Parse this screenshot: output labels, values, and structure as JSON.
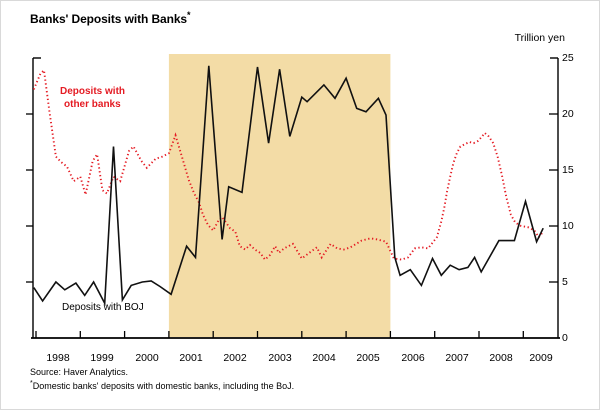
{
  "title": {
    "text": "Banks' Deposits with Banks",
    "marker": "*"
  },
  "unit_label": "Trillion yen",
  "y_axis": {
    "ticks": [
      "25",
      "20",
      "15",
      "10",
      "5",
      "0"
    ],
    "values": [
      25,
      20,
      15,
      10,
      5,
      0
    ]
  },
  "x_axis": {
    "labels": [
      "1998",
      "1999",
      "2000",
      "2001",
      "2002",
      "2003",
      "2004",
      "2005",
      "2006",
      "2007",
      "2008",
      "2009"
    ]
  },
  "annotations": {
    "other_banks_line1": "Deposits with",
    "other_banks_line2": "other banks",
    "boj_label": "Deposits with BOJ"
  },
  "footer": {
    "source": "Source: Haver Analytics.",
    "footnote_marker": "*",
    "footnote": "Domestic banks' deposits with domestic banks, including the BoJ."
  },
  "colors": {
    "red_line": "#e41b23",
    "black_line": "#111111",
    "shading": "#f3dca6",
    "axis": "#000000"
  },
  "chart_data": {
    "type": "line",
    "title": "Banks' Deposits with Banks*",
    "ylabel": "Trillion yen",
    "ylim": [
      0,
      25
    ],
    "xlim": [
      1997.93,
      2009.78
    ],
    "grid": false,
    "x_tick_years": [
      1998,
      1999,
      2000,
      2001,
      2002,
      2003,
      2004,
      2005,
      2006,
      2007,
      2008,
      2009
    ],
    "shaded_region": {
      "start_year": 2001,
      "end_year": 2006,
      "meaning": "shaded band"
    },
    "series": [
      {
        "name": "Deposits with other banks",
        "style": "dotted",
        "color": "#e41b23",
        "points": [
          [
            1997.95,
            22.2
          ],
          [
            1998.1,
            23.6
          ],
          [
            1998.18,
            23.9
          ],
          [
            1998.3,
            20.3
          ],
          [
            1998.45,
            16.2
          ],
          [
            1998.57,
            15.7
          ],
          [
            1998.7,
            15.3
          ],
          [
            1998.85,
            14.0
          ],
          [
            1999.0,
            14.4
          ],
          [
            1999.12,
            12.8
          ],
          [
            1999.28,
            15.8
          ],
          [
            1999.38,
            16.4
          ],
          [
            1999.5,
            13.2
          ],
          [
            1999.6,
            12.9
          ],
          [
            1999.75,
            14.4
          ],
          [
            1999.9,
            14.0
          ],
          [
            2000.1,
            16.7
          ],
          [
            2000.2,
            17.1
          ],
          [
            2000.38,
            15.8
          ],
          [
            2000.5,
            15.2
          ],
          [
            2000.7,
            16.0
          ],
          [
            2000.85,
            16.2
          ],
          [
            2001.0,
            16.5
          ],
          [
            2001.15,
            18.1
          ],
          [
            2001.3,
            16.1
          ],
          [
            2001.45,
            14.1
          ],
          [
            2001.57,
            12.9
          ],
          [
            2001.68,
            12.1
          ],
          [
            2001.77,
            11.0
          ],
          [
            2001.88,
            10.1
          ],
          [
            2002.0,
            9.6
          ],
          [
            2002.12,
            10.5
          ],
          [
            2002.2,
            10.8
          ],
          [
            2002.38,
            9.8
          ],
          [
            2002.5,
            9.5
          ],
          [
            2002.6,
            8.2
          ],
          [
            2002.72,
            7.9
          ],
          [
            2002.83,
            8.3
          ],
          [
            2002.94,
            7.9
          ],
          [
            2003.06,
            7.6
          ],
          [
            2003.17,
            7.0
          ],
          [
            2003.28,
            7.4
          ],
          [
            2003.4,
            8.2
          ],
          [
            2003.48,
            7.6
          ],
          [
            2003.6,
            8.0
          ],
          [
            2003.8,
            8.4
          ],
          [
            2004.0,
            7.1
          ],
          [
            2004.2,
            7.7
          ],
          [
            2004.34,
            8.1
          ],
          [
            2004.45,
            7.2
          ],
          [
            2004.65,
            8.4
          ],
          [
            2004.8,
            8.0
          ],
          [
            2004.95,
            7.9
          ],
          [
            2005.1,
            8.1
          ],
          [
            2005.35,
            8.7
          ],
          [
            2005.55,
            8.9
          ],
          [
            2005.7,
            8.8
          ],
          [
            2005.9,
            8.6
          ],
          [
            2006.08,
            7.1
          ],
          [
            2006.25,
            7.0
          ],
          [
            2006.4,
            7.2
          ],
          [
            2006.55,
            8.0
          ],
          [
            2006.7,
            8.1
          ],
          [
            2006.85,
            8.0
          ],
          [
            2007.05,
            9.0
          ],
          [
            2007.15,
            10.4
          ],
          [
            2007.22,
            11.7
          ],
          [
            2007.28,
            13.1
          ],
          [
            2007.35,
            14.4
          ],
          [
            2007.42,
            15.6
          ],
          [
            2007.5,
            16.5
          ],
          [
            2007.58,
            17.1
          ],
          [
            2007.68,
            17.3
          ],
          [
            2007.78,
            17.5
          ],
          [
            2007.88,
            17.4
          ],
          [
            2007.98,
            17.6
          ],
          [
            2008.07,
            18.0
          ],
          [
            2008.13,
            18.3
          ],
          [
            2008.22,
            18.0
          ],
          [
            2008.32,
            17.4
          ],
          [
            2008.42,
            16.2
          ],
          [
            2008.52,
            14.5
          ],
          [
            2008.62,
            12.5
          ],
          [
            2008.72,
            11.0
          ],
          [
            2008.82,
            10.3
          ],
          [
            2008.95,
            10.0
          ],
          [
            2009.1,
            9.9
          ],
          [
            2009.25,
            9.6
          ],
          [
            2009.35,
            9.0
          ],
          [
            2009.45,
            9.5
          ]
        ]
      },
      {
        "name": "Deposits with BOJ",
        "style": "solid",
        "color": "#111111",
        "points": [
          [
            1997.95,
            4.5
          ],
          [
            1998.15,
            3.3
          ],
          [
            1998.45,
            5.0
          ],
          [
            1998.65,
            4.3
          ],
          [
            1998.9,
            4.9
          ],
          [
            1999.1,
            3.8
          ],
          [
            1999.3,
            5.0
          ],
          [
            1999.55,
            3.1
          ],
          [
            1999.75,
            17.1
          ],
          [
            1999.95,
            3.4
          ],
          [
            2000.15,
            4.7
          ],
          [
            2000.4,
            5.0
          ],
          [
            2000.6,
            5.1
          ],
          [
            2000.8,
            4.6
          ],
          [
            2001.05,
            3.9
          ],
          [
            2001.4,
            8.2
          ],
          [
            2001.6,
            7.2
          ],
          [
            2001.9,
            24.3
          ],
          [
            2002.2,
            8.8
          ],
          [
            2002.35,
            13.5
          ],
          [
            2002.65,
            13.0
          ],
          [
            2003.0,
            24.2
          ],
          [
            2003.25,
            17.4
          ],
          [
            2003.5,
            24.0
          ],
          [
            2003.73,
            18.0
          ],
          [
            2004.0,
            21.5
          ],
          [
            2004.12,
            21.1
          ],
          [
            2004.5,
            22.6
          ],
          [
            2004.75,
            21.4
          ],
          [
            2005.0,
            23.2
          ],
          [
            2005.24,
            20.5
          ],
          [
            2005.45,
            20.2
          ],
          [
            2005.73,
            21.4
          ],
          [
            2005.9,
            19.9
          ],
          [
            2006.1,
            7.2
          ],
          [
            2006.22,
            5.6
          ],
          [
            2006.45,
            6.1
          ],
          [
            2006.7,
            4.7
          ],
          [
            2006.95,
            7.1
          ],
          [
            2007.15,
            5.6
          ],
          [
            2007.35,
            6.5
          ],
          [
            2007.55,
            6.1
          ],
          [
            2007.75,
            6.3
          ],
          [
            2007.9,
            7.2
          ],
          [
            2008.05,
            5.9
          ],
          [
            2008.45,
            8.7
          ],
          [
            2008.8,
            8.7
          ],
          [
            2009.05,
            12.2
          ],
          [
            2009.3,
            8.6
          ],
          [
            2009.45,
            9.8
          ]
        ]
      }
    ]
  }
}
